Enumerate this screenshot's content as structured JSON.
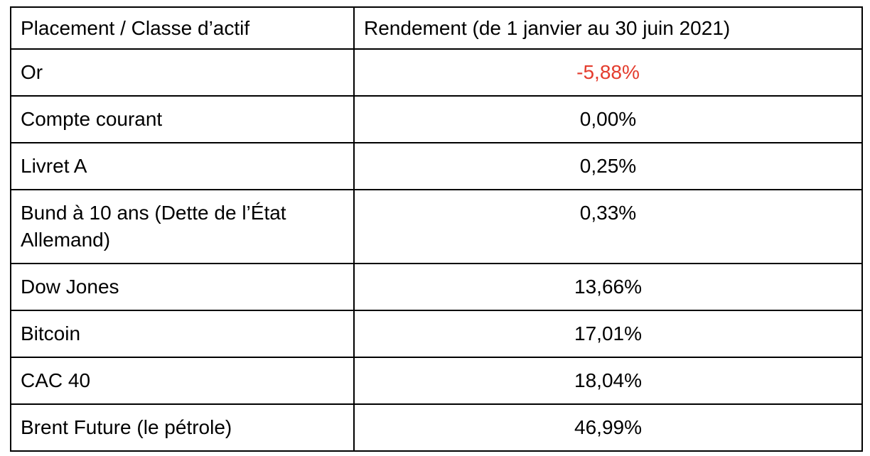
{
  "page": {
    "background": "#ffffff"
  },
  "table": {
    "columns": {
      "asset": "Placement / Classe d’actif",
      "return": "Rendement (de 1 janvier au 30 juin 2021)"
    },
    "rows": [
      {
        "label": "Or",
        "value": "-5,88%",
        "negative": true
      },
      {
        "label": "Compte courant",
        "value": "0,00%",
        "negative": false
      },
      {
        "label": "Livret A",
        "value": "0,25%",
        "negative": false
      },
      {
        "label": "Bund à 10 ans (Dette de l’État Allemand)",
        "value": "0,33%",
        "negative": false
      },
      {
        "label": "Dow Jones",
        "value": "13,66%",
        "negative": false
      },
      {
        "label": "Bitcoin",
        "value": "17,01%",
        "negative": false
      },
      {
        "label": "CAC 40",
        "value": "18,04%",
        "negative": false
      },
      {
        "label": "Brent Future (le pétrole)",
        "value": "46,99%",
        "negative": false
      }
    ],
    "colors": {
      "text": "#000000",
      "border": "#000000",
      "negative_value": "#e43c2d"
    }
  }
}
